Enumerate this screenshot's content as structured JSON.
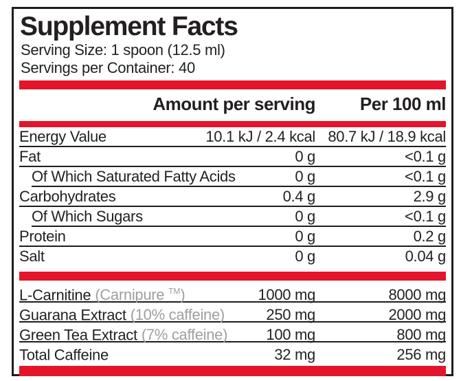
{
  "colors": {
    "accent_red": "#e4142b",
    "text_black": "#231f20",
    "muted_gray": "#9d9fa2",
    "border_black": "#1d1d1b"
  },
  "header": {
    "title": "Supplement Facts",
    "serving_size": "Serving Size: 1 spoon (12.5 ml)",
    "servings_per_container": "Servings per Container: 40"
  },
  "table": {
    "columns": {
      "amount_label": "Amount per serving",
      "per_100ml_label": "Per 100 ml"
    },
    "nutrients": [
      {
        "name": "Energy Value",
        "amount": "10.1 kJ / 2.4 kcal",
        "per_100ml": "80.7 kJ / 18.9 kcal",
        "indent": false
      },
      {
        "name": "Fat",
        "amount": "0 g",
        "per_100ml": "<0.1 g",
        "indent": false
      },
      {
        "name": "Of Which Saturated Fatty Acids",
        "amount": "0 g",
        "per_100ml": "<0.1 g",
        "indent": true
      },
      {
        "name": "Carbohydrates",
        "amount": "0.4 g",
        "per_100ml": "2.9 g",
        "indent": false
      },
      {
        "name": "Of Which Sugars",
        "amount": "0 g",
        "per_100ml": "<0.1 g",
        "indent": true
      },
      {
        "name": "Protein",
        "amount": "0 g",
        "per_100ml": "0.2 g",
        "indent": false
      },
      {
        "name": "Salt",
        "amount": "0 g",
        "per_100ml": "0.04 g",
        "indent": false
      }
    ],
    "ingredients": [
      {
        "name": "L-Carnitine",
        "note_prefix": "(Carnipure ",
        "note_sup": "TM",
        "note_suffix": ")",
        "amount": "1000 mg",
        "per_100ml": "8000 mg"
      },
      {
        "name": "Guarana Extract",
        "note_prefix": "(10% caffeine)",
        "note_sup": "",
        "note_suffix": "",
        "amount": "250 mg",
        "per_100ml": "2000 mg"
      },
      {
        "name": "Green Tea Extract",
        "note_prefix": "(7% caffeine)",
        "note_sup": "",
        "note_suffix": "",
        "amount": "100 mg",
        "per_100ml": "800 mg"
      },
      {
        "name": "Total Caffeine",
        "note_prefix": "",
        "note_sup": "",
        "note_suffix": "",
        "amount": "32 mg",
        "per_100ml": "256 mg"
      }
    ]
  }
}
